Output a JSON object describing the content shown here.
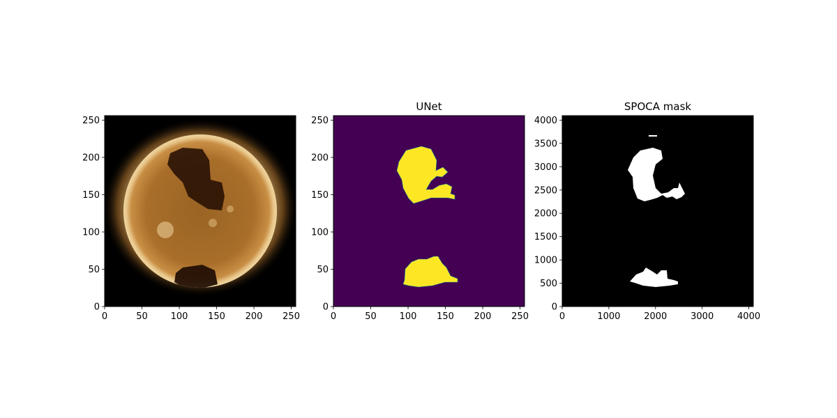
{
  "figure": {
    "colors": {
      "background": "#ffffff",
      "sun_bright": "#f0d6a2",
      "sun_mid": "#b57a2c",
      "sun_dark": "#3b1f08",
      "unet_background": "#440154",
      "unet_mask": "#fde725",
      "unet_edge": "#21918c",
      "spoca_background": "#000000",
      "spoca_mask": "#ffffff"
    }
  },
  "panels": [
    {
      "id": "aia",
      "title": "",
      "x_ticks": [
        "0",
        "50",
        "100",
        "150",
        "200",
        "250"
      ],
      "y_ticks": [
        "0",
        "50",
        "100",
        "150",
        "200",
        "250"
      ],
      "xlim": [
        0,
        256
      ],
      "ylim": [
        0,
        256
      ]
    },
    {
      "id": "unet",
      "title": "UNet",
      "x_ticks": [
        "0",
        "50",
        "100",
        "150",
        "200",
        "250"
      ],
      "y_ticks": [
        "0",
        "50",
        "100",
        "150",
        "200",
        "250"
      ],
      "xlim": [
        0,
        256
      ],
      "ylim": [
        0,
        256
      ]
    },
    {
      "id": "spoca",
      "title": "SPOCA mask",
      "x_ticks": [
        "0",
        "1000",
        "2000",
        "3000",
        "4000"
      ],
      "y_ticks": [
        "0",
        "500",
        "1000",
        "1500",
        "2000",
        "2500",
        "3000",
        "3500",
        "4000"
      ],
      "xlim": [
        0,
        4096
      ],
      "ylim": [
        0,
        4096
      ]
    }
  ]
}
